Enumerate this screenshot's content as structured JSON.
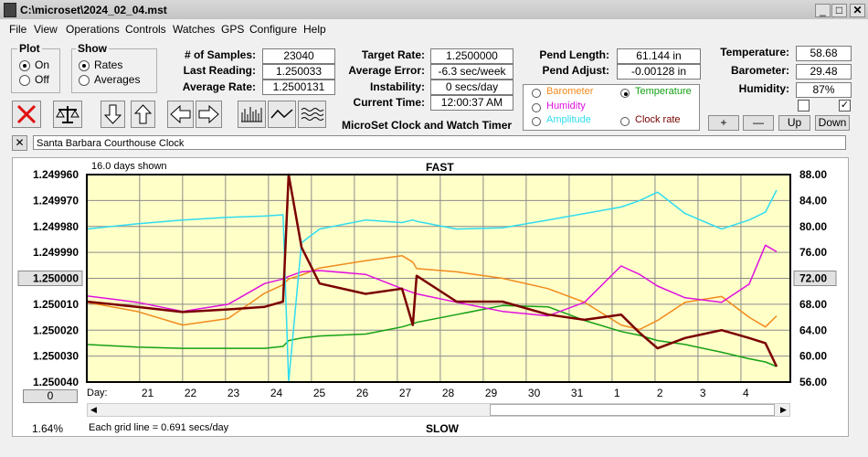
{
  "window": {
    "title": "C:\\microset\\2024_02_04.mst"
  },
  "menu": [
    "File",
    "View",
    "Operations",
    "Controls",
    "Watches",
    "GPS",
    "Configure",
    "Help"
  ],
  "plot_group": {
    "title": "Plot",
    "options": [
      "On",
      "Off"
    ]
  },
  "show_group": {
    "title": "Show",
    "options": [
      "Rates",
      "Averages"
    ]
  },
  "stats": [
    {
      "label": "# of Samples:",
      "value": "23040"
    },
    {
      "label": "Last Reading:",
      "value": "1.250033"
    },
    {
      "label": "Average Rate:",
      "value": "1.2500131"
    }
  ],
  "rates": [
    {
      "label": "Target Rate:",
      "value": "1.2500000"
    },
    {
      "label": "Average Error:",
      "value": "-6.3 sec/week"
    },
    {
      "label": "Instability:",
      "value": "0 secs/day"
    },
    {
      "label": "Current Time:",
      "value": "12:00:37 AM"
    }
  ],
  "app_name": "MicroSet Clock and Watch Timer",
  "pendulum": [
    {
      "label": "Pend Length:",
      "value": "61.144 in"
    },
    {
      "label": "Pend Adjust:",
      "value": "-0.00128 in"
    }
  ],
  "environment": [
    {
      "label": "Temperature:",
      "value": "58.68"
    },
    {
      "label": "Barometer:",
      "value": "29.48"
    },
    {
      "label": "Humidity:",
      "value": "87%"
    }
  ],
  "buttons": [
    "+",
    "—",
    "Up",
    "Down"
  ],
  "clock_name": "Santa Barbara Courthouse Clock",
  "chart_data": {
    "type": "line",
    "days_shown": "16.0 days shown",
    "top_label": "FAST",
    "bottom_label": "SLOW",
    "x_label": "Day:",
    "grid_note": "Each grid line = 0.691 secs/day",
    "offset_button": "0",
    "percent": "1.64%",
    "x": [
      -1.23,
      -0.06,
      1.0,
      2.06,
      2.91,
      3.34,
      3.47,
      3.77,
      4.19,
      5.26,
      6.11,
      6.36,
      6.45,
      7.38,
      8.45,
      9.51,
      10.36,
      11.21,
      11.64,
      12.06,
      12.7,
      13.55,
      14.19,
      14.57,
      14.83
    ],
    "xlim": [
      -1.23,
      15.15
    ],
    "xticks": [
      {
        "value": 0,
        "label": "21"
      },
      {
        "value": 1,
        "label": "22"
      },
      {
        "value": 2,
        "label": "23"
      },
      {
        "value": 3,
        "label": "24"
      },
      {
        "value": 4,
        "label": "25"
      },
      {
        "value": 5,
        "label": "26"
      },
      {
        "value": 6,
        "label": "27"
      },
      {
        "value": 7,
        "label": "28"
      },
      {
        "value": 8,
        "label": "29"
      },
      {
        "value": 9,
        "label": "30"
      },
      {
        "value": 10,
        "label": "31"
      },
      {
        "value": 11,
        "label": "1"
      },
      {
        "value": 12,
        "label": "2"
      },
      {
        "value": 13,
        "label": "3"
      },
      {
        "value": 14,
        "label": "4"
      }
    ],
    "ylim": [
      1.25004,
      1.24996
    ],
    "yticks": [
      {
        "value": 1.24996,
        "label": "1.249960"
      },
      {
        "value": 1.24997,
        "label": "1.249970"
      },
      {
        "value": 1.24998,
        "label": "1.249980"
      },
      {
        "value": 1.24999,
        "label": "1.249990"
      },
      {
        "value": 1.25,
        "label": "1.250000"
      },
      {
        "value": 1.25001,
        "label": "1.250010"
      },
      {
        "value": 1.25002,
        "label": "1.250020"
      },
      {
        "value": 1.25003,
        "label": "1.250030"
      },
      {
        "value": 1.25004,
        "label": "1.250040"
      }
    ],
    "y2lim": [
      56,
      88
    ],
    "y2ticks": [
      {
        "value": 88,
        "label": "88.00"
      },
      {
        "value": 84,
        "label": "84.00"
      },
      {
        "value": 80,
        "label": "80.00"
      },
      {
        "value": 76,
        "label": "76.00"
      },
      {
        "value": 72,
        "label": "72.00"
      },
      {
        "value": 68,
        "label": "68.00"
      },
      {
        "value": 64,
        "label": "64.00"
      },
      {
        "value": 60,
        "label": "60.00"
      },
      {
        "value": 56,
        "label": "56.00"
      }
    ],
    "grid": true,
    "series": [
      {
        "name": "Barometer",
        "color": "#f08a1c",
        "axis": "y2",
        "values": [
          68.3,
          66.9,
          64.8,
          65.8,
          69.7,
          71,
          71.9,
          72.5,
          73.6,
          74.7,
          75.5,
          74.5,
          73.5,
          73,
          72,
          70.4,
          68.3,
          64.8,
          64.1,
          65.5,
          68.3,
          69.2,
          66,
          64.5,
          66.2
        ]
      },
      {
        "name": "Temperature",
        "color": "#14a014",
        "axis": "y2",
        "values": [
          61.8,
          61.4,
          61.2,
          61.2,
          61.2,
          61.5,
          62.4,
          62.8,
          63.1,
          63.4,
          64.5,
          65,
          65.2,
          66.4,
          67.8,
          67.6,
          65.5,
          63.8,
          63.2,
          62.4,
          61.8,
          60.6,
          59.6,
          59.1,
          58.4
        ]
      },
      {
        "name": "Humidity",
        "color": "#e010e0",
        "axis": "y2",
        "values": [
          69.3,
          68.3,
          66.9,
          68,
          71.2,
          71.9,
          72.3,
          73,
          73.2,
          72.6,
          70.4,
          69.8,
          69.6,
          68.3,
          66.9,
          66.2,
          68.3,
          73.9,
          72.6,
          70.8,
          69,
          68.3,
          71.1,
          77.1,
          76.1
        ]
      },
      {
        "name": "Amplitude",
        "color": "#30dcf0",
        "axis": "y2",
        "values": [
          79.6,
          80.4,
          81,
          81.4,
          81.6,
          81.8,
          56,
          77.5,
          79.6,
          81,
          80.6,
          81,
          80.8,
          79.6,
          79.8,
          81,
          82,
          83,
          84,
          85.3,
          82,
          79.6,
          81,
          82.2,
          85.6
        ]
      },
      {
        "name": "Clock rate",
        "color": "#7a0000",
        "axis": "y",
        "values": [
          1.250009,
          1.250011,
          1.250013,
          1.250012,
          1.250011,
          1.250009,
          1.24996,
          1.249988,
          1.250002,
          1.250006,
          1.250004,
          1.250018,
          1.249999,
          1.250009,
          1.250009,
          1.250014,
          1.250016,
          1.250014,
          1.250021,
          1.250027,
          1.250023,
          1.25002,
          1.250023,
          1.250025,
          1.250034
        ]
      }
    ]
  }
}
